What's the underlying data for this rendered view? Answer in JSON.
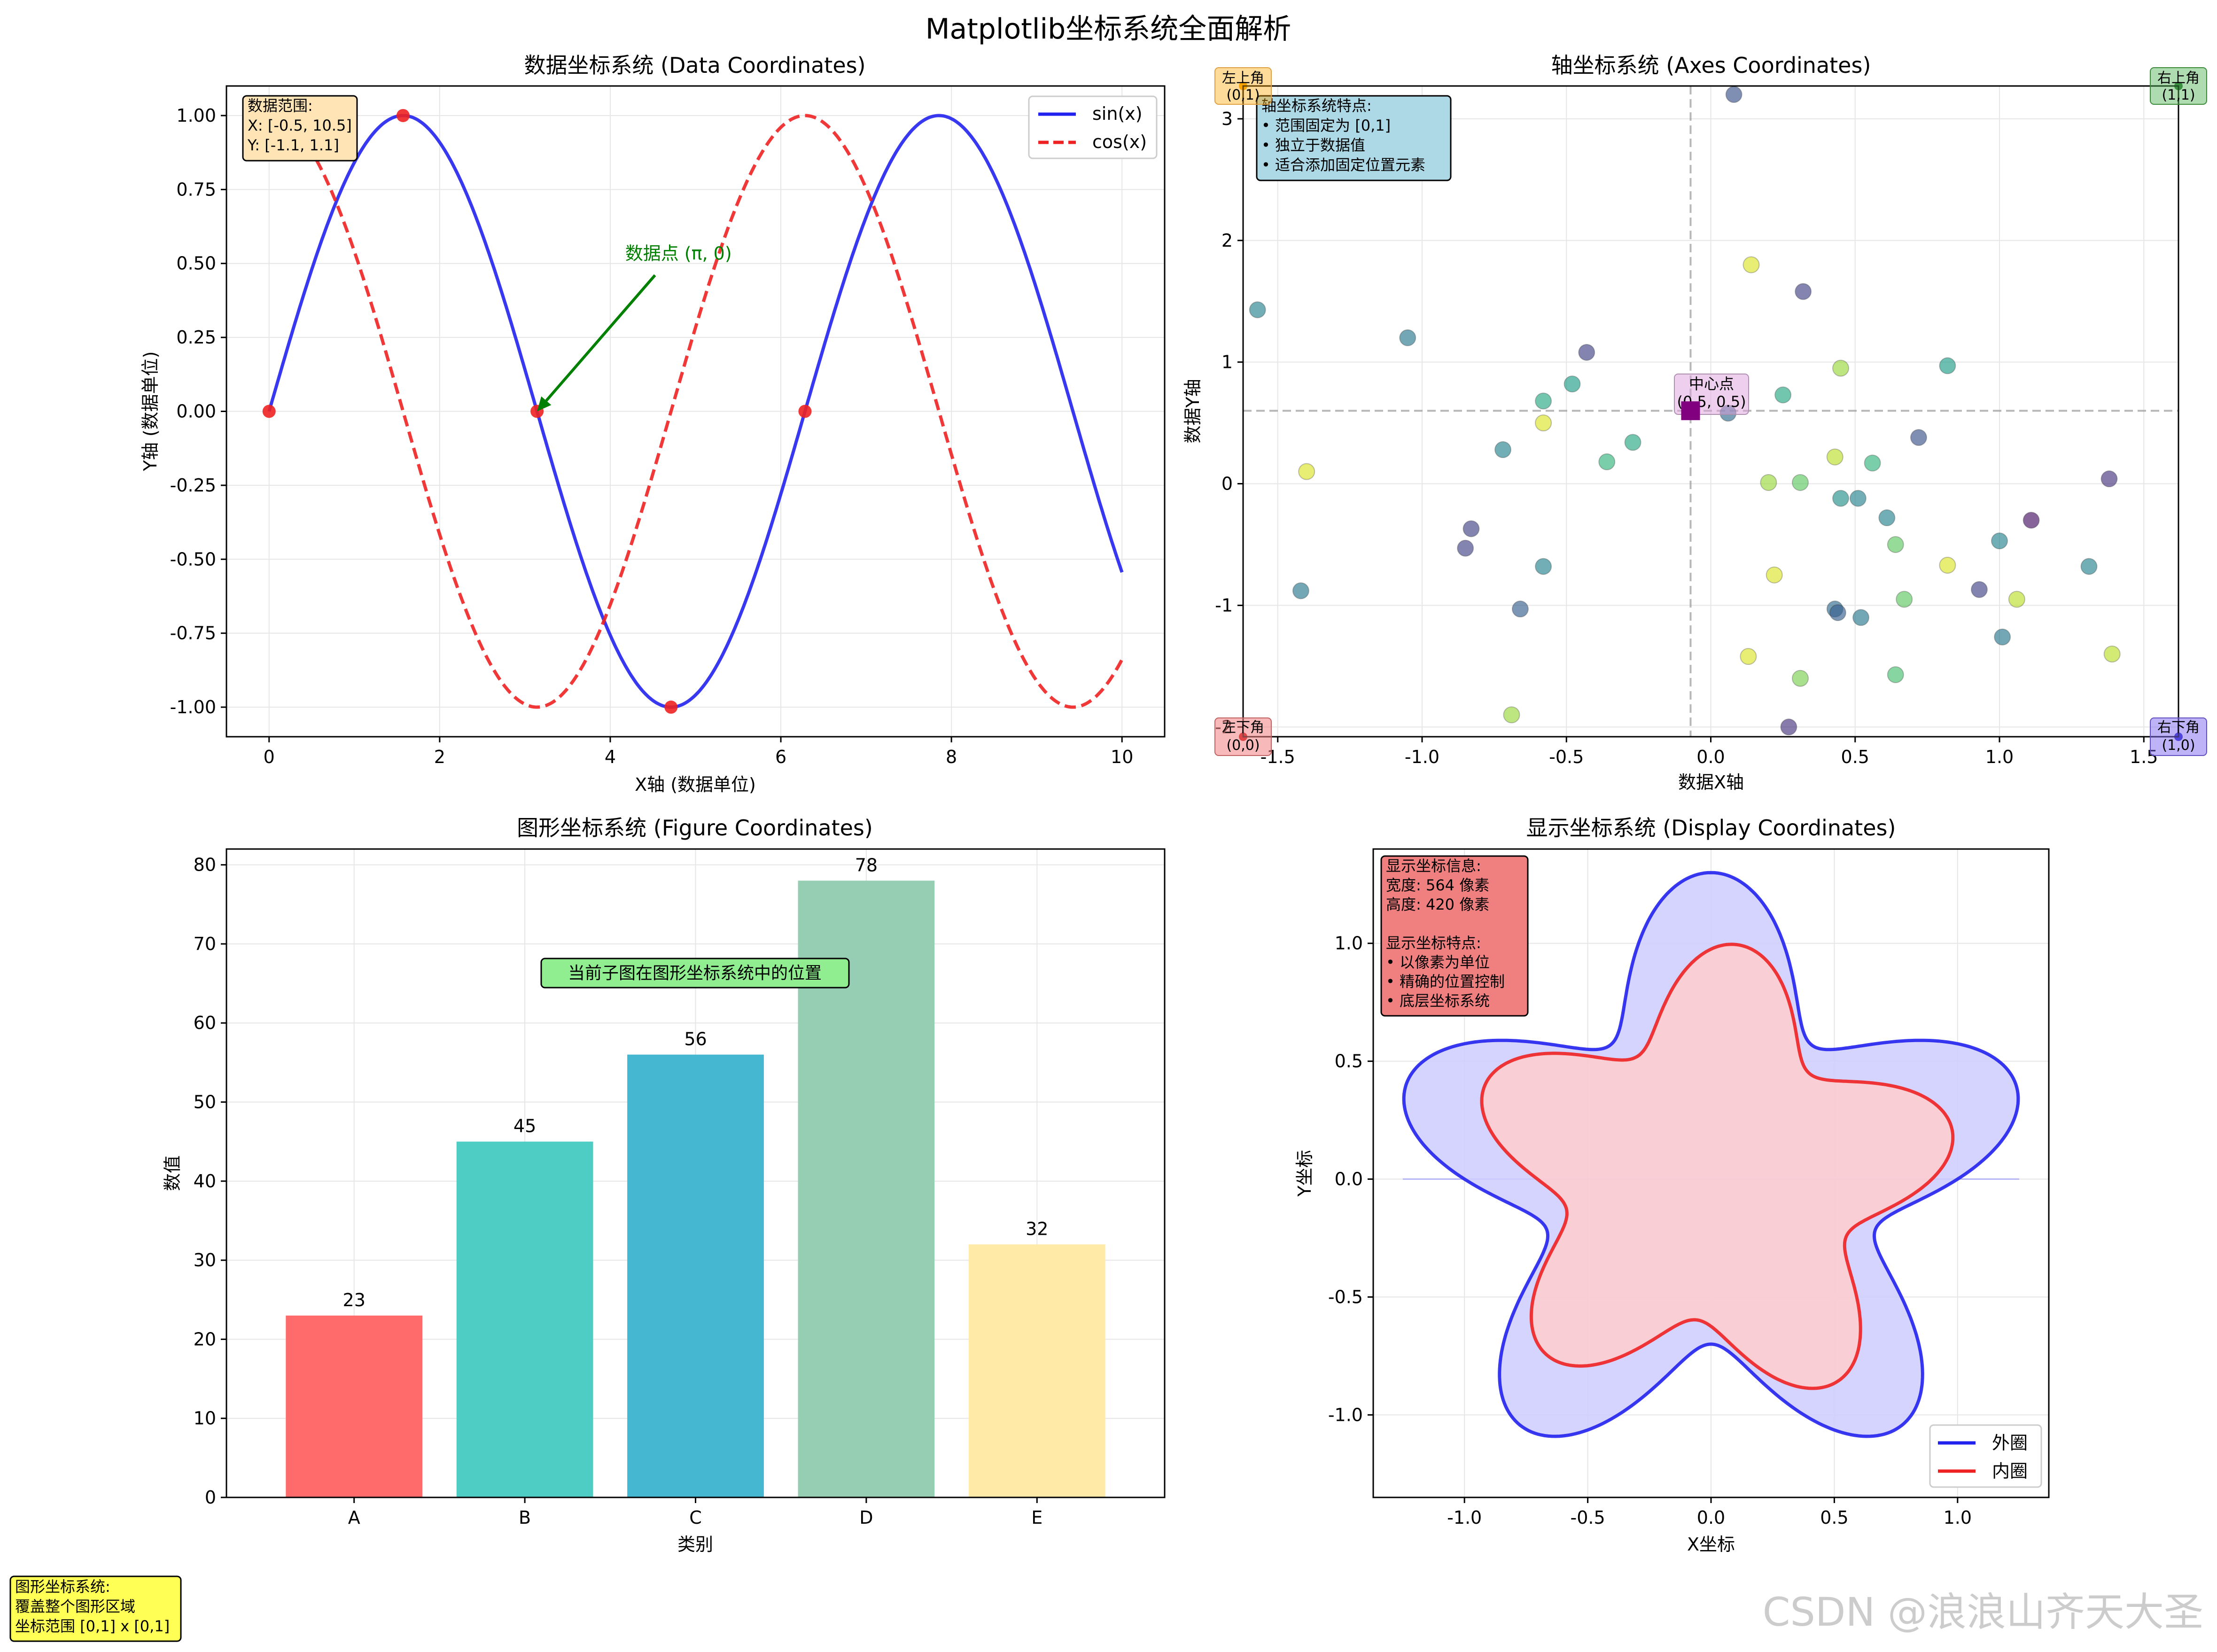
{
  "figure": {
    "title": "Matplotlib坐标系统全面解析",
    "figure_note": [
      "图形坐标系统:",
      "覆盖整个图形区域",
      "坐标范围 [0,1] x [0,1]"
    ],
    "watermark": "CSDN @浪浪山齐天大圣"
  },
  "colors": {
    "sin": "#2222ee",
    "cos": "#ee2222",
    "marker": "#ee2222",
    "annotation": "#008000",
    "outer": "#2222ee",
    "inner": "#ee2222",
    "bars": [
      "#FF6B6B",
      "#4ECDC4",
      "#45B7D1",
      "#96CEB4",
      "#FFEAA7"
    ]
  },
  "chart_data": [
    {
      "type": "line",
      "title": "数据坐标系统 (Data Coordinates)",
      "xlabel": "X轴 (数据单位)",
      "ylabel": "Y轴 (数据单位)",
      "xlim": [
        -0.5,
        10.5
      ],
      "ylim": [
        -1.1,
        1.1
      ],
      "xticks": [
        0,
        2,
        4,
        6,
        8,
        10
      ],
      "yticks": [
        -1.0,
        -0.75,
        -0.5,
        -0.25,
        0.0,
        0.25,
        0.5,
        0.75,
        1.0
      ],
      "ytick_labels": [
        "-1.00",
        "-0.75",
        "-0.50",
        "-0.25",
        "0.00",
        "0.25",
        "0.50",
        "0.75",
        "1.00"
      ],
      "grid": true,
      "legend_position": "top-right",
      "series": [
        {
          "name": "sin(x)",
          "function": "sin",
          "style": "solid",
          "x_range": [
            0,
            10
          ]
        },
        {
          "name": "cos(x)",
          "function": "cos",
          "style": "dashed",
          "x_range": [
            0,
            10
          ]
        }
      ],
      "markers": {
        "x": [
          0,
          1.5708,
          3.1416,
          4.7124,
          6.2832
        ],
        "y": [
          0,
          1,
          0,
          -1,
          0
        ]
      },
      "annotation": {
        "text": "数据点 (π, 0)",
        "x": 3.1416,
        "y": 0,
        "text_x": 4.8,
        "text_y": 0.5
      },
      "info_box": [
        "数据范围:",
        "X: [-0.5, 10.5]",
        "Y: [-1.1, 1.1]"
      ]
    },
    {
      "type": "scatter",
      "title": "轴坐标系统 (Axes Coordinates)",
      "xlabel": "数据X轴",
      "ylabel": "数据Y轴",
      "xlim": [
        -1.62,
        1.62
      ],
      "ylim": [
        -2.08,
        3.27
      ],
      "xticks": [
        -1.5,
        -1.0,
        -0.5,
        0.0,
        0.5,
        1.0,
        1.5
      ],
      "xtick_labels": [
        "-1.5",
        "-1.0",
        "-0.5",
        "0.0",
        "0.5",
        "1.0",
        "1.5"
      ],
      "yticks": [
        -2,
        -1,
        0,
        1,
        2,
        3
      ],
      "grid": true,
      "points": [
        {
          "x": 0.08,
          "y": 3.2,
          "c": 0.25
        },
        {
          "x": 0.14,
          "y": 1.8,
          "c": 0.95
        },
        {
          "x": 0.32,
          "y": 1.58,
          "c": 0.2
        },
        {
          "x": -1.57,
          "y": 1.43,
          "c": 0.45
        },
        {
          "x": -1.05,
          "y": 1.2,
          "c": 0.4
        },
        {
          "x": -0.43,
          "y": 1.08,
          "c": 0.2
        },
        {
          "x": 0.82,
          "y": 0.97,
          "c": 0.55
        },
        {
          "x": 0.45,
          "y": 0.95,
          "c": 0.85
        },
        {
          "x": -0.48,
          "y": 0.82,
          "c": 0.55
        },
        {
          "x": 0.25,
          "y": 0.73,
          "c": 0.6
        },
        {
          "x": -0.58,
          "y": 0.68,
          "c": 0.6
        },
        {
          "x": 0.06,
          "y": 0.58,
          "c": 0.35
        },
        {
          "x": -0.58,
          "y": 0.5,
          "c": 0.95
        },
        {
          "x": -0.27,
          "y": 0.34,
          "c": 0.6
        },
        {
          "x": 0.72,
          "y": 0.38,
          "c": 0.25
        },
        {
          "x": -0.72,
          "y": 0.28,
          "c": 0.45
        },
        {
          "x": 0.43,
          "y": 0.22,
          "c": 0.9
        },
        {
          "x": -0.36,
          "y": 0.18,
          "c": 0.65
        },
        {
          "x": 0.56,
          "y": 0.17,
          "c": 0.65
        },
        {
          "x": -1.4,
          "y": 0.1,
          "c": 0.95
        },
        {
          "x": 0.2,
          "y": 0.01,
          "c": 0.85
        },
        {
          "x": 0.31,
          "y": 0.01,
          "c": 0.75
        },
        {
          "x": 1.38,
          "y": 0.04,
          "c": 0.15
        },
        {
          "x": 0.45,
          "y": -0.12,
          "c": 0.5
        },
        {
          "x": 0.51,
          "y": -0.12,
          "c": 0.45
        },
        {
          "x": 0.61,
          "y": -0.28,
          "c": 0.45
        },
        {
          "x": -0.83,
          "y": -0.37,
          "c": 0.2
        },
        {
          "x": 1.11,
          "y": -0.3,
          "c": 0.05
        },
        {
          "x": 1.0,
          "y": -0.47,
          "c": 0.45
        },
        {
          "x": -0.85,
          "y": -0.53,
          "c": 0.2
        },
        {
          "x": 0.64,
          "y": -0.5,
          "c": 0.75
        },
        {
          "x": -0.58,
          "y": -0.68,
          "c": 0.45
        },
        {
          "x": 0.82,
          "y": -0.67,
          "c": 0.95
        },
        {
          "x": 1.31,
          "y": -0.68,
          "c": 0.45
        },
        {
          "x": 0.22,
          "y": -0.75,
          "c": 0.95
        },
        {
          "x": -1.42,
          "y": -0.88,
          "c": 0.4
        },
        {
          "x": 0.93,
          "y": -0.87,
          "c": 0.2
        },
        {
          "x": 0.67,
          "y": -0.95,
          "c": 0.75
        },
        {
          "x": 1.06,
          "y": -0.95,
          "c": 0.9
        },
        {
          "x": -0.66,
          "y": -1.03,
          "c": 0.3
        },
        {
          "x": 0.43,
          "y": -1.03,
          "c": 0.35
        },
        {
          "x": 0.44,
          "y": -1.06,
          "c": 0.3
        },
        {
          "x": 0.52,
          "y": -1.1,
          "c": 0.4
        },
        {
          "x": 1.01,
          "y": -1.26,
          "c": 0.4
        },
        {
          "x": 0.13,
          "y": -1.42,
          "c": 0.95
        },
        {
          "x": 1.39,
          "y": -1.4,
          "c": 0.9
        },
        {
          "x": 0.64,
          "y": -1.57,
          "c": 0.7
        },
        {
          "x": 0.31,
          "y": -1.6,
          "c": 0.8
        },
        {
          "x": -0.69,
          "y": -1.9,
          "c": 0.85
        },
        {
          "x": 0.27,
          "y": -2.0,
          "c": 0.15
        }
      ],
      "crosshair": {
        "x": -0.07,
        "y": 0.6
      },
      "center_marker": {
        "x": -0.07,
        "y": 0.6,
        "color": "#800080"
      },
      "center_label": [
        "中心点",
        "(0.5, 0.5)"
      ],
      "corner_labels": {
        "top_left": [
          "左上角",
          "(0,1)"
        ],
        "top_right": [
          "右上角",
          "(1,1)"
        ],
        "bottom_left": [
          "左下角",
          "(0,0)"
        ],
        "bottom_right": [
          "右下角",
          "(1,0)"
        ]
      },
      "info_box": [
        "轴坐标系统特点:",
        "• 范围固定为 [0,1]",
        "• 独立于数据值",
        "• 适合添加固定位置元素"
      ]
    },
    {
      "type": "bar",
      "title": "图形坐标系统 (Figure Coordinates)",
      "xlabel": "类别",
      "ylabel": "数值",
      "categories": [
        "A",
        "B",
        "C",
        "D",
        "E"
      ],
      "values": [
        23,
        45,
        56,
        78,
        32
      ],
      "ylim": [
        0,
        82
      ],
      "yticks": [
        0,
        10,
        20,
        30,
        40,
        50,
        60,
        70,
        80
      ],
      "grid": true,
      "center_note": "当前子图在图形坐标系统中的位置"
    },
    {
      "type": "area",
      "title": "显示坐标系统 (Display Coordinates)",
      "xlabel": "X坐标",
      "ylabel": "Y坐标",
      "xlim": [
        -1.37,
        1.37
      ],
      "ylim": [
        -1.35,
        1.4
      ],
      "xticks": [
        -1.0,
        -0.5,
        0.0,
        0.5,
        1.0
      ],
      "yticks": [
        -1.0,
        -0.5,
        0.0,
        0.5,
        1.0
      ],
      "grid": true,
      "legend_position": "bottom-right",
      "series": [
        {
          "name": "外圈",
          "r": "1 + 0.3*sin(5t)",
          "fill": "#ccccff"
        },
        {
          "name": "内圈",
          "r": "0.8 + 0.2*sin(5t+0.5)",
          "fill": "#ffcccc"
        }
      ],
      "info_box": [
        "显示坐标信息:",
        "宽度: 564 像素",
        "高度: 420 像素",
        "",
        "显示坐标特点:",
        "• 以像素为单位",
        "• 精确的位置控制",
        "• 底层坐标系统"
      ]
    }
  ]
}
